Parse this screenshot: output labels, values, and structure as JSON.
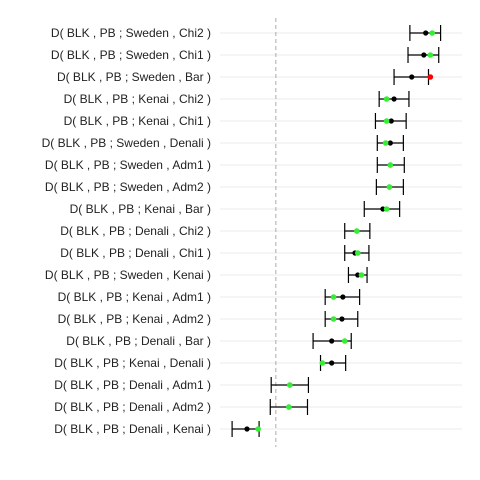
{
  "chart_data": {
    "type": "scatter",
    "title": "",
    "xlabel": "",
    "ylabel": "",
    "xlim": [
      -0.3,
      1.0
    ],
    "grid": true,
    "legend": "none",
    "reference_line": {
      "x": 0,
      "style": "dashed"
    },
    "colors": {
      "estimate": "#000000",
      "observed": "#33ee33",
      "observed_outside": "#ff0000",
      "errorbar": "#000000",
      "grid": "#ebebeb",
      "reference": "#aaaaaa"
    },
    "rows": [
      {
        "label": "D( BLK , PB ; Sweden , Chi2 )",
        "low": 0.72,
        "est": 0.805,
        "high": 0.885,
        "obs": 0.84,
        "obs_outside": false
      },
      {
        "label": "D( BLK , PB ; Sweden , Chi1 )",
        "low": 0.71,
        "est": 0.795,
        "high": 0.875,
        "obs": 0.83,
        "obs_outside": false
      },
      {
        "label": "D( BLK , PB ; Sweden , Bar )",
        "low": 0.635,
        "est": 0.73,
        "high": 0.82,
        "obs": 0.83,
        "obs_outside": true
      },
      {
        "label": "D( BLK , PB ; Kenai , Chi2 )",
        "low": 0.555,
        "est": 0.635,
        "high": 0.715,
        "obs": 0.595,
        "obs_outside": false
      },
      {
        "label": "D( BLK , PB ; Kenai , Chi1 )",
        "low": 0.535,
        "est": 0.62,
        "high": 0.7,
        "obs": 0.595,
        "obs_outside": false
      },
      {
        "label": "D( BLK , PB ; Sweden , Denali )",
        "low": 0.545,
        "est": 0.615,
        "high": 0.685,
        "obs": 0.59,
        "obs_outside": false
      },
      {
        "label": "D( BLK , PB ; Sweden , Adm1 )",
        "low": 0.545,
        "est": 0.615,
        "high": 0.69,
        "obs": 0.615,
        "obs_outside": false
      },
      {
        "label": "D( BLK , PB ; Sweden , Adm2 )",
        "low": 0.54,
        "est": 0.61,
        "high": 0.685,
        "obs": 0.61,
        "obs_outside": false
      },
      {
        "label": "D( BLK , PB ; Kenai , Bar )",
        "low": 0.475,
        "est": 0.575,
        "high": 0.665,
        "obs": 0.595,
        "obs_outside": false
      },
      {
        "label": "D( BLK , PB ; Denali , Chi2 )",
        "low": 0.37,
        "est": 0.435,
        "high": 0.505,
        "obs": 0.435,
        "obs_outside": false
      },
      {
        "label": "D( BLK , PB ; Denali , Chi1 )",
        "low": 0.37,
        "est": 0.425,
        "high": 0.5,
        "obs": 0.44,
        "obs_outside": false
      },
      {
        "label": "D( BLK , PB ; Sweden , Kenai )",
        "low": 0.39,
        "est": 0.44,
        "high": 0.49,
        "obs": 0.46,
        "obs_outside": false
      },
      {
        "label": "D( BLK , PB ; Kenai , Adm1 )",
        "low": 0.265,
        "est": 0.36,
        "high": 0.45,
        "obs": 0.31,
        "obs_outside": false
      },
      {
        "label": "D( BLK , PB ; Kenai , Adm2 )",
        "low": 0.265,
        "est": 0.355,
        "high": 0.44,
        "obs": 0.31,
        "obs_outside": false
      },
      {
        "label": "D( BLK , PB ; Denali , Bar )",
        "low": 0.2,
        "est": 0.3,
        "high": 0.405,
        "obs": 0.37,
        "obs_outside": false
      },
      {
        "label": "D( BLK , PB ; Kenai , Denali )",
        "low": 0.24,
        "est": 0.3,
        "high": 0.375,
        "obs": 0.25,
        "obs_outside": false
      },
      {
        "label": "D( BLK , PB ; Denali , Adm1 )",
        "low": -0.025,
        "est": 0.075,
        "high": 0.175,
        "obs": 0.075,
        "obs_outside": false
      },
      {
        "label": "D( BLK , PB ; Denali , Adm2 )",
        "low": -0.03,
        "est": 0.07,
        "high": 0.17,
        "obs": 0.07,
        "obs_outside": false
      },
      {
        "label": "D( BLK , PB ; Denali , Kenai )",
        "low": -0.235,
        "est": -0.155,
        "high": -0.09,
        "obs": -0.095,
        "obs_outside": false
      }
    ]
  }
}
